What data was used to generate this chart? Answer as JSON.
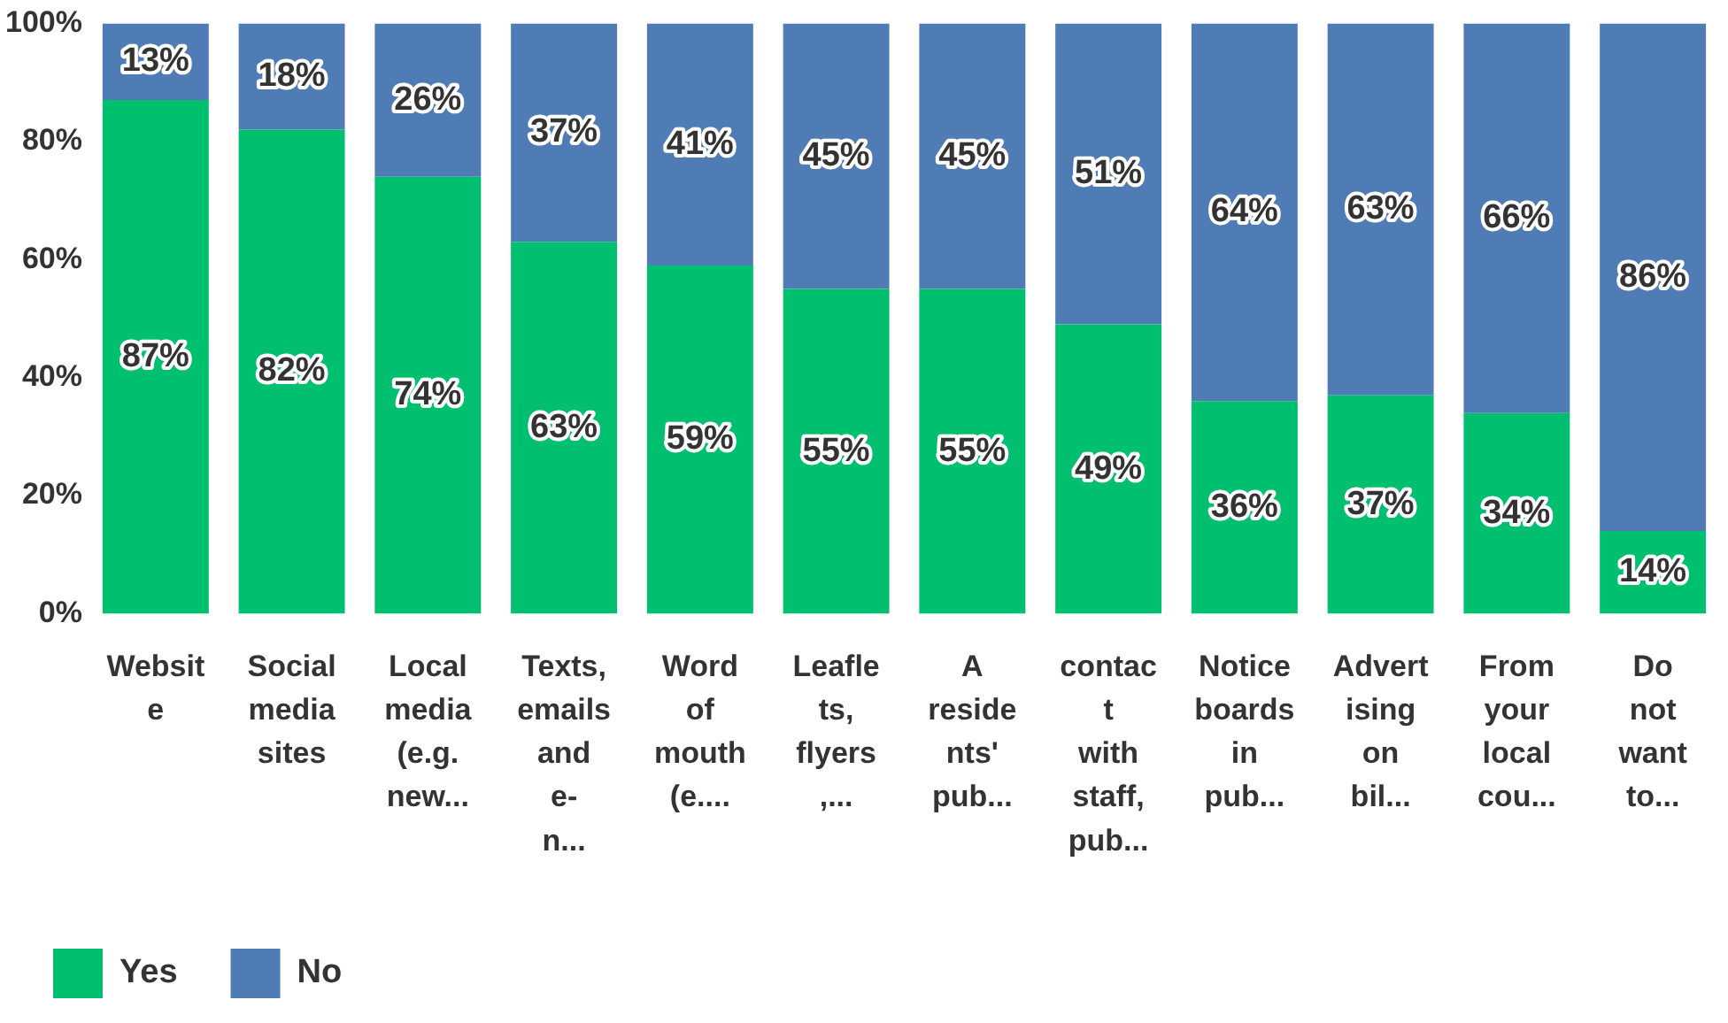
{
  "chart_data": {
    "type": "bar",
    "stacked": true,
    "categories": [
      "Websit\ne",
      "Social\nmedia\nsites",
      "Local\nmedia\n(e.g.\nnew...",
      "Texts,\nemails\nand\ne-\nn...",
      "Word\nof\nmouth\n(e....",
      "Leafle\nts,\nflyers\n,...",
      "A\nreside\nnts'\npub...",
      "contac\nt\nwith\nstaff,\npub...",
      "Notice\nboards\nin\npub...",
      "Advert\nising\non\nbil...",
      "From\nyour\nlocal\ncou...",
      "Do\nnot\nwant\nto..."
    ],
    "series": [
      {
        "name": "Yes",
        "color": "#00bf6f",
        "values": [
          87,
          82,
          74,
          63,
          59,
          55,
          55,
          49,
          36,
          37,
          34,
          14
        ],
        "value_labels": [
          "87%",
          "82%",
          "74%",
          "63%",
          "59%",
          "55%",
          "55%",
          "49%",
          "36%",
          "37%",
          "34%",
          "14%"
        ]
      },
      {
        "name": "No",
        "color": "#507cb6",
        "values": [
          13,
          18,
          26,
          37,
          41,
          45,
          45,
          51,
          64,
          63,
          66,
          86
        ],
        "value_labels": [
          "13%",
          "18%",
          "26%",
          "37%",
          "41%",
          "45%",
          "45%",
          "51%",
          "64%",
          "63%",
          "66%",
          "86%"
        ]
      }
    ],
    "ylim": [
      0,
      100
    ],
    "yticks": [
      {
        "value": 0,
        "label": "0%"
      },
      {
        "value": 20,
        "label": "20%"
      },
      {
        "value": 40,
        "label": "40%"
      },
      {
        "value": 60,
        "label": "60%"
      },
      {
        "value": 80,
        "label": "80%"
      },
      {
        "value": 100,
        "label": "100%"
      }
    ],
    "grid": false,
    "legend": "bottom left"
  }
}
